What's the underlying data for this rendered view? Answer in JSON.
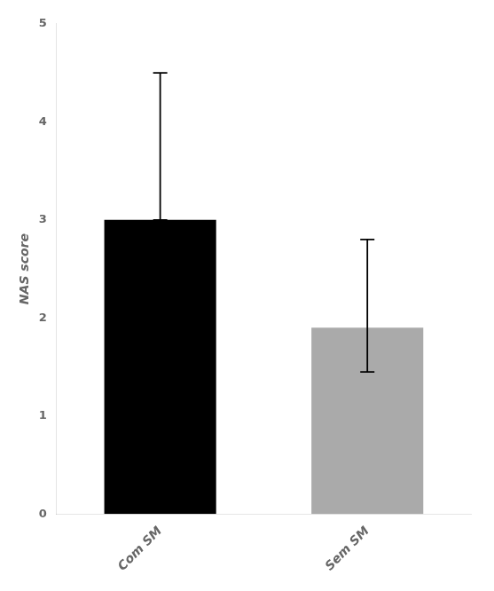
{
  "chart_data": {
    "type": "bar",
    "categories": [
      "Com SM",
      "Sem SM"
    ],
    "values": [
      3.0,
      1.9
    ],
    "colors": [
      "#000000",
      "#aaaaaa"
    ],
    "error_upper": [
      1.5,
      0.9
    ],
    "error_lower": [
      0.0,
      0.45
    ],
    "ylabel": "NAS score",
    "ylim": [
      0,
      5
    ],
    "yticks": [
      0,
      1,
      2,
      3,
      4,
      5
    ],
    "grid": false
  }
}
